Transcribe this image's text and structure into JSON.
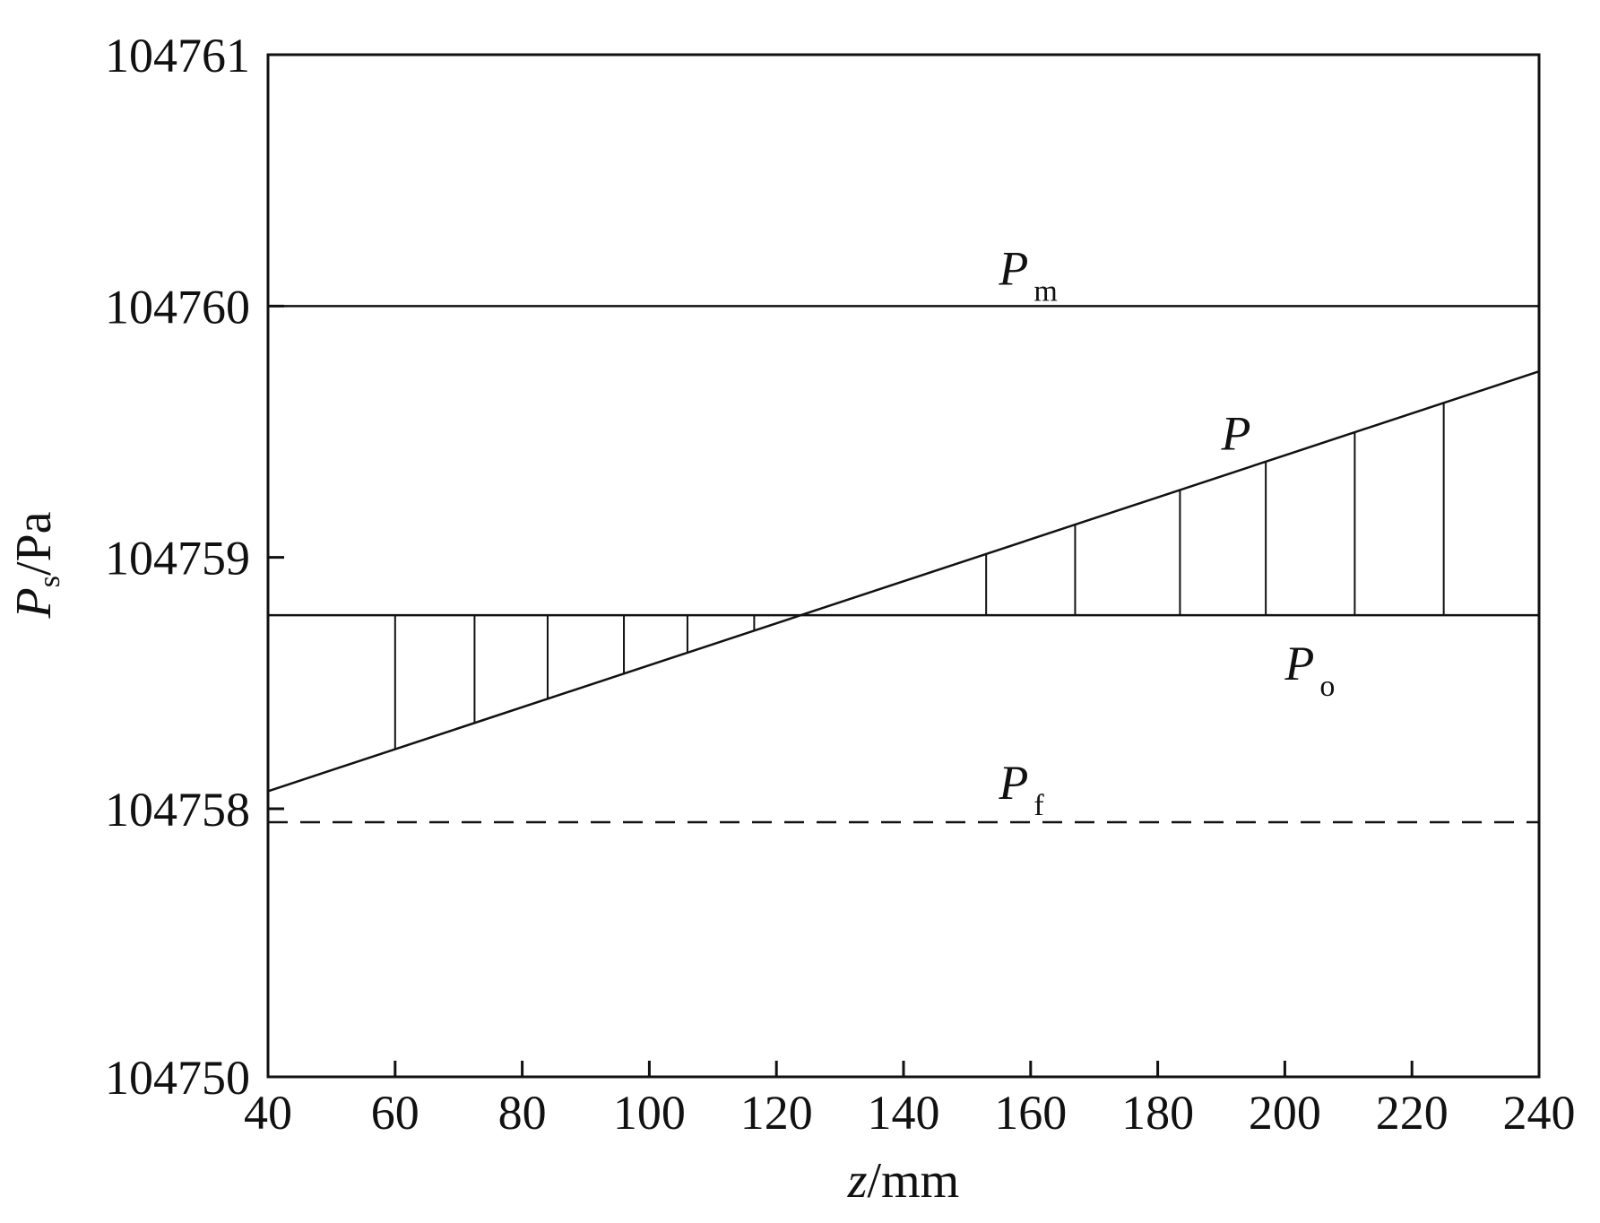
{
  "chart_data": {
    "type": "line",
    "x_axis": {
      "label_var": "z",
      "label_unit": "/mm",
      "range": [
        40,
        240
      ],
      "ticks": [
        40,
        60,
        80,
        100,
        120,
        140,
        160,
        180,
        200,
        220,
        240
      ]
    },
    "y_axis": {
      "label_var": "P",
      "label_sub": "s",
      "label_unit": "/Pa",
      "scale": "broken",
      "tick_labels": [
        "104761",
        "104760",
        "104759",
        "104758",
        "104750"
      ]
    },
    "series": [
      {
        "name": "P",
        "name_sub": "m",
        "style": "solid",
        "x": [
          40,
          240
        ],
        "y": [
          104760.0,
          104760.0
        ]
      },
      {
        "name": "P",
        "name_sub": "",
        "style": "solid",
        "x": [
          40,
          240
        ],
        "y": [
          104758.07,
          104759.74
        ]
      },
      {
        "name": "P",
        "name_sub": "o",
        "style": "solid",
        "x": [
          40,
          240
        ],
        "y": [
          104758.77,
          104758.77
        ]
      },
      {
        "name": "P",
        "name_sub": "f",
        "style": "dashed",
        "x": [
          40,
          240
        ],
        "y": [
          104757.6,
          104757.6
        ]
      }
    ],
    "hatch_x": [
      60,
      72.5,
      84,
      96,
      106,
      116.5,
      153,
      167,
      183.5,
      197,
      211,
      225
    ],
    "grid": false,
    "legend": "none"
  }
}
